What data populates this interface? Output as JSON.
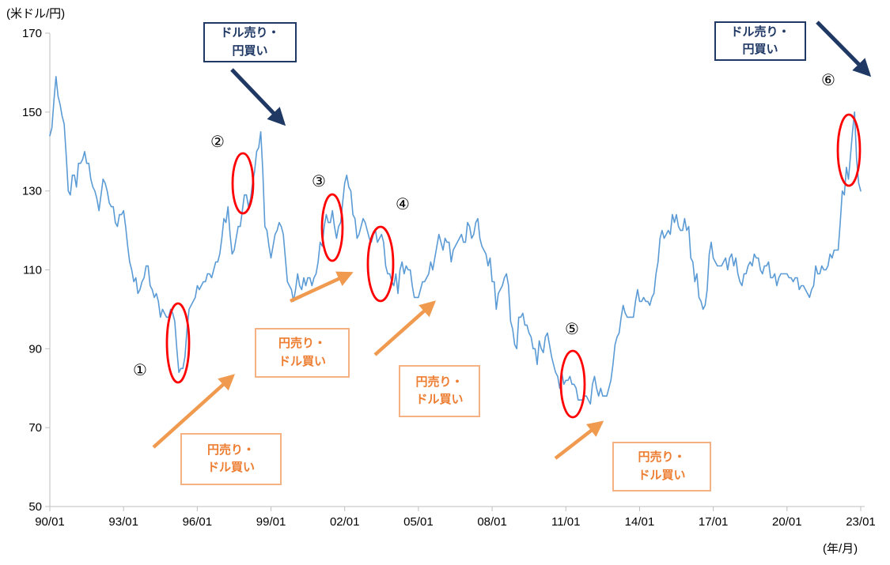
{
  "theme": {
    "line_color": "#5B9BD5",
    "navy": "#1F3864",
    "orange_text": "#ED7D31",
    "orange_border": "#F4B183",
    "orange_arrow": "#F09A50",
    "red": "#FF0000",
    "axis_color": "#BFBFBF",
    "tick_text_color": "#000000"
  },
  "annotations": {
    "dollar_sell_yen_buy": "ドル売り・\n円買い",
    "yen_sell_dollar_buy": "円売り・\nドル買い",
    "markers": [
      "①",
      "②",
      "③",
      "④",
      "⑤",
      "⑥"
    ]
  },
  "chart_data": {
    "type": "line",
    "title": "",
    "y_axis_label": "(米ドル/円)",
    "x_axis_label": "(年/月)",
    "ylim": [
      50,
      170
    ],
    "y_ticks": [
      170,
      150,
      130,
      110,
      90,
      70,
      50
    ],
    "x_tick_labels": [
      "90/01",
      "93/01",
      "96/01",
      "99/01",
      "02/01",
      "05/01",
      "08/01",
      "11/01",
      "14/01",
      "17/01",
      "20/01",
      "23/01"
    ],
    "grid": false,
    "legend": "none",
    "series": [
      {
        "name": "米ドル/円レート",
        "color": "#5B9BD5",
        "start": "1990/01",
        "end": "2023/01",
        "frequency": "monthly",
        "values": [
          144,
          146,
          153,
          159,
          154,
          152,
          149,
          147,
          139,
          130,
          129,
          134,
          134,
          131,
          137,
          137,
          138,
          140,
          137,
          137,
          133,
          131,
          130,
          128,
          125,
          129,
          133,
          132,
          130,
          127,
          126,
          126,
          122,
          121,
          124,
          124,
          125,
          121,
          116,
          112,
          110,
          107,
          108,
          104,
          105,
          107,
          108,
          111,
          111,
          106,
          105,
          103,
          104,
          102,
          98,
          100,
          99,
          98,
          98,
          100,
          99,
          97,
          90,
          84,
          85,
          85,
          88,
          95,
          100,
          101,
          102,
          103,
          106,
          105,
          106,
          107,
          107,
          109,
          109,
          108,
          110,
          112,
          112,
          114,
          118,
          123,
          122,
          126,
          119,
          114,
          115,
          118,
          121,
          121,
          125,
          129,
          129,
          126,
          128,
          132,
          135,
          140,
          141,
          145,
          135,
          121,
          120,
          116,
          113,
          116,
          119,
          120,
          122,
          121,
          119,
          113,
          107,
          106,
          105,
          102,
          105,
          109,
          106,
          105,
          108,
          106,
          108,
          108,
          106,
          108,
          109,
          112,
          117,
          116,
          121,
          124,
          122,
          122,
          125,
          121,
          118,
          121,
          122,
          127,
          132,
          134,
          131,
          130,
          124,
          123,
          118,
          119,
          121,
          123,
          122,
          120,
          118,
          117,
          119,
          120,
          117,
          118,
          119,
          117,
          111,
          109,
          109,
          107,
          106,
          109,
          104,
          110,
          112,
          109,
          111,
          110,
          110,
          106,
          103,
          103,
          103,
          105,
          107,
          107,
          108,
          109,
          112,
          110,
          113,
          116,
          119,
          117,
          115,
          118,
          117,
          117,
          112,
          115,
          116,
          117,
          118,
          119,
          117,
          117,
          122,
          121,
          118,
          119,
          122,
          123,
          118,
          116,
          115,
          114,
          111,
          113,
          107,
          107,
          100,
          104,
          105,
          106,
          108,
          109,
          106,
          97,
          95,
          91,
          90,
          98,
          98,
          99,
          96,
          96,
          94,
          93,
          90,
          90,
          86,
          92,
          90,
          89,
          93,
          94,
          91,
          88,
          86,
          84,
          83,
          80,
          84,
          81,
          82,
          82,
          83,
          81,
          81,
          80,
          77,
          77,
          77,
          78,
          78,
          77,
          76,
          81,
          83,
          80,
          78,
          80,
          78,
          78,
          78,
          80,
          82,
          86,
          91,
          93,
          94,
          98,
          101,
          99,
          98,
          98,
          98,
          98,
          102,
          105,
          102,
          102,
          103,
          102,
          102,
          101,
          103,
          104,
          109,
          112,
          118,
          120,
          118,
          119,
          120,
          119,
          124,
          122,
          124,
          121,
          120,
          120,
          123,
          120,
          121,
          113,
          112,
          107,
          109,
          103,
          102,
          100,
          101,
          105,
          114,
          117,
          113,
          112,
          111,
          111,
          111,
          112,
          113,
          110,
          113,
          114,
          111,
          113,
          109,
          107,
          106,
          109,
          109,
          111,
          112,
          111,
          114,
          113,
          113,
          110,
          109,
          111,
          111,
          112,
          108,
          108,
          109,
          106,
          108,
          109,
          109,
          109,
          109,
          108,
          108,
          107,
          108,
          108,
          105,
          106,
          106,
          105,
          104,
          103,
          105,
          106,
          111,
          109,
          109,
          111,
          110,
          110,
          111,
          114,
          113,
          115,
          115,
          115,
          122,
          130,
          129,
          136,
          133,
          139,
          145,
          150,
          138,
          132,
          130
        ]
      }
    ]
  }
}
